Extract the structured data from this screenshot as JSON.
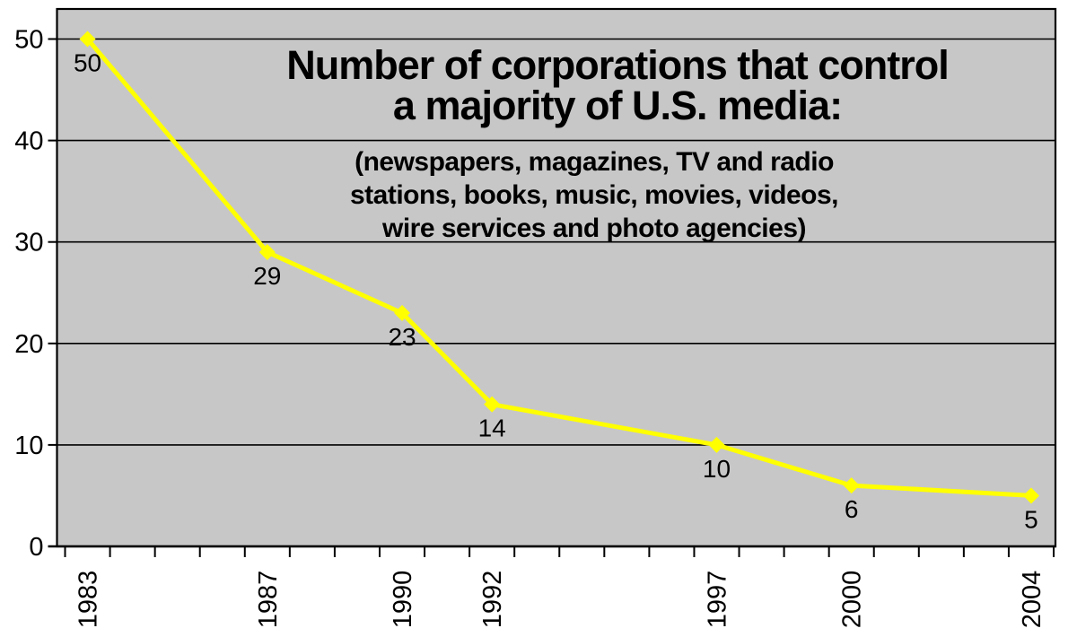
{
  "chart_data": {
    "type": "line",
    "title": {
      "line1": "Number of corporations that control",
      "line2": "a majority of U.S. media:"
    },
    "subtitle_lines": [
      "(newspapers, magazines, TV and radio",
      "stations, books, music, movies, videos,",
      "wire services and photo agencies)"
    ],
    "x": [
      1983,
      1987,
      1990,
      1992,
      1997,
      2000,
      2004
    ],
    "values": [
      50,
      29,
      23,
      14,
      10,
      6,
      5
    ],
    "point_labels": [
      "50",
      "29",
      "23",
      "14",
      "10",
      "6",
      "5"
    ],
    "x_tick_labels": [
      "1983",
      "1987",
      "1990",
      "1992",
      "1997",
      "2000",
      "2004"
    ],
    "y_ticks": [
      0,
      10,
      20,
      30,
      40,
      50
    ],
    "ylim": [
      0,
      53
    ],
    "xlim": [
      1982.32,
      2004.54
    ],
    "x_boundary_ticks": {
      "start": 1982.5,
      "end": 2004.5,
      "step": 1
    },
    "grid": "horizontal",
    "legend": "none",
    "x_label_rotation_deg": -90,
    "colors": {
      "line": "#ffff00",
      "marker": "#ffff00",
      "plot_bg": "#c7c7c7",
      "grid": "#000000",
      "axis": "#000000",
      "text": "#000000",
      "page_bg": "#ffffff"
    }
  }
}
